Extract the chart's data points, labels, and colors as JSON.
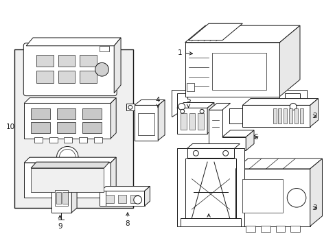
{
  "bg_color": "#ffffff",
  "line_color": "#1a1a1a",
  "fig_width": 4.89,
  "fig_height": 3.6,
  "dpi": 100,
  "lw": 0.7
}
